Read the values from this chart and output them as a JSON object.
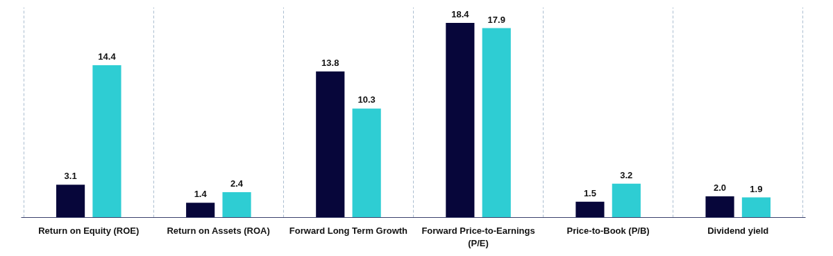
{
  "chart_data": {
    "type": "bar",
    "categories": [
      "Return on Equity (ROE)",
      "Return on Assets (ROA)",
      "Forward Long Term Growth",
      "Forward Price-to-Earnings (P/E)",
      "Price-to-Book (P/B)",
      "Dividend yield"
    ],
    "series": [
      {
        "color": "#07063a",
        "values": [
          3.1,
          1.4,
          13.8,
          18.4,
          1.5,
          2.0
        ],
        "value_labels": [
          "3.1",
          "1.4",
          "13.8",
          "18.4",
          "1.5",
          "2.0"
        ]
      },
      {
        "color": "#2ecdd3",
        "values": [
          14.4,
          2.4,
          10.3,
          17.9,
          3.2,
          1.9
        ],
        "value_labels": [
          "14.4",
          "2.4",
          "10.3",
          "17.9",
          "3.2",
          "1.9"
        ]
      }
    ],
    "grid": "x"
  }
}
